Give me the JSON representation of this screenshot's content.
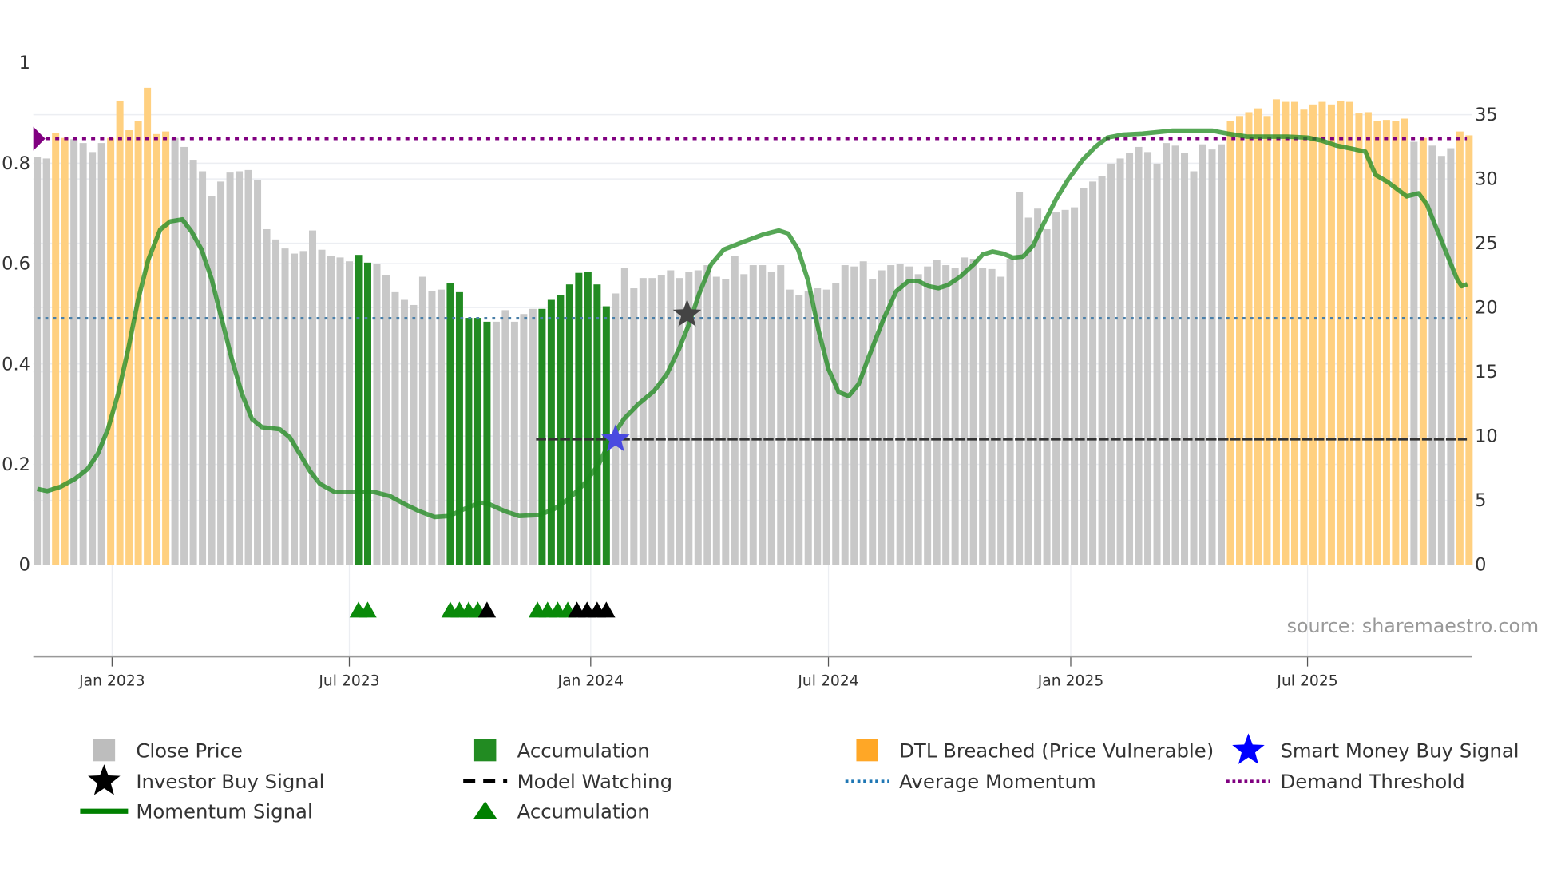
{
  "chart_data": {
    "type": "bar",
    "title": "",
    "left_axis": {
      "ticks": [
        "0",
        "0.2",
        "0.4",
        "0.6",
        "0.8",
        "1"
      ],
      "range": [
        0,
        1
      ]
    },
    "right_axis": {
      "ticks": [
        "0",
        "5",
        "10",
        "15",
        "20",
        "25",
        "30",
        "35"
      ],
      "range": [
        0,
        39
      ]
    },
    "x_ticks": [
      {
        "label": "Jan 2023",
        "week": 8.15
      },
      {
        "label": "Jul 2023",
        "week": 34.0
      },
      {
        "label": "Jan 2024",
        "week": 60.3
      },
      {
        "label": "Jul 2024",
        "week": 86.2
      },
      {
        "label": "Jan 2025",
        "week": 112.6
      },
      {
        "label": "Jul 2025",
        "week": 138.4
      }
    ],
    "close_price": [
      31.7,
      31.6,
      33.6,
      33.2,
      33.1,
      32.8,
      32.1,
      32.8,
      33.2,
      36.1,
      33.8,
      34.5,
      37.1,
      33.5,
      33.7,
      33.2,
      32.5,
      31.5,
      30.6,
      28.7,
      29.8,
      30.5,
      30.6,
      30.7,
      29.9,
      26.1,
      25.3,
      24.6,
      24.2,
      24.4,
      26.0,
      24.5,
      24.0,
      23.9,
      23.6,
      24.1,
      23.5,
      23.4,
      22.5,
      21.2,
      20.6,
      20.2,
      22.4,
      21.3,
      21.4,
      21.9,
      21.2,
      19.2,
      19.2,
      18.9,
      18.9,
      19.8,
      18.9,
      19.5,
      19.9,
      19.9,
      20.6,
      21.0,
      21.8,
      22.7,
      22.8,
      21.8,
      20.1,
      21.1,
      23.1,
      21.5,
      22.3,
      22.3,
      22.5,
      22.9,
      22.3,
      22.8,
      22.9,
      23.3,
      22.4,
      22.2,
      24.0,
      22.6,
      23.3,
      23.3,
      22.8,
      23.3,
      21.4,
      21.0,
      21.3,
      21.5,
      21.4,
      21.9,
      23.3,
      23.2,
      23.6,
      22.2,
      22.9,
      23.3,
      23.4,
      23.2,
      22.6,
      23.2,
      23.7,
      23.3,
      23.1,
      23.9,
      23.8,
      23.1,
      23.0,
      22.4,
      23.8,
      29.0,
      27.0,
      27.7,
      26.1,
      27.4,
      27.6,
      27.8,
      29.3,
      29.8,
      30.2,
      31.2,
      31.6,
      32.0,
      32.5,
      32.1,
      31.2,
      32.8,
      32.6,
      32.0,
      30.6,
      32.7,
      32.3,
      32.7,
      34.5,
      34.9,
      35.2,
      35.5,
      34.9,
      36.2,
      36.0,
      36.0,
      35.4,
      35.8,
      36.0,
      35.8,
      36.1,
      36.0,
      35.1,
      35.2,
      34.5,
      34.6,
      34.5,
      34.7,
      32.9,
      33.2,
      32.6,
      31.8,
      32.4,
      33.7,
      33.4
    ],
    "accumulation_bars": [
      35,
      36,
      45,
      46,
      47,
      48,
      49,
      55,
      56,
      57,
      58,
      59,
      60,
      61,
      62
    ],
    "dtl_breached_bars": [
      2,
      3,
      8,
      9,
      10,
      11,
      12,
      13,
      14,
      130,
      131,
      132,
      133,
      134,
      135,
      136,
      137,
      138,
      139,
      140,
      141,
      142,
      143,
      144,
      145,
      146,
      147,
      148,
      149,
      151,
      155,
      156
    ],
    "momentum_signal": [
      [
        0,
        0.151
      ],
      [
        1.1,
        0.147
      ],
      [
        2.5,
        0.155
      ],
      [
        4.1,
        0.171
      ],
      [
        5.5,
        0.191
      ],
      [
        6.6,
        0.221
      ],
      [
        7.7,
        0.27
      ],
      [
        8.8,
        0.34
      ],
      [
        9.9,
        0.429
      ],
      [
        11,
        0.529
      ],
      [
        12.1,
        0.608
      ],
      [
        13.4,
        0.668
      ],
      [
        14.5,
        0.684
      ],
      [
        15.8,
        0.688
      ],
      [
        16.8,
        0.664
      ],
      [
        17.9,
        0.628
      ],
      [
        19,
        0.569
      ],
      [
        20.1,
        0.489
      ],
      [
        21.2,
        0.41
      ],
      [
        22.3,
        0.34
      ],
      [
        23.4,
        0.29
      ],
      [
        24.5,
        0.274
      ],
      [
        26.4,
        0.27
      ],
      [
        27.5,
        0.254
      ],
      [
        28.6,
        0.221
      ],
      [
        29.7,
        0.187
      ],
      [
        30.8,
        0.161
      ],
      [
        32.4,
        0.145
      ],
      [
        36.7,
        0.145
      ],
      [
        38.4,
        0.137
      ],
      [
        40,
        0.121
      ],
      [
        41.6,
        0.107
      ],
      [
        43.3,
        0.095
      ],
      [
        44.9,
        0.097
      ],
      [
        46.5,
        0.111
      ],
      [
        48.2,
        0.123
      ],
      [
        49.2,
        0.121
      ],
      [
        50.9,
        0.107
      ],
      [
        52.5,
        0.097
      ],
      [
        54.7,
        0.099
      ],
      [
        56.3,
        0.111
      ],
      [
        57.9,
        0.131
      ],
      [
        59.6,
        0.161
      ],
      [
        61.2,
        0.201
      ],
      [
        62.5,
        0.25
      ],
      [
        63.9,
        0.29
      ],
      [
        65.5,
        0.32
      ],
      [
        67.2,
        0.346
      ],
      [
        68.6,
        0.38
      ],
      [
        69.9,
        0.429
      ],
      [
        71,
        0.479
      ],
      [
        72.1,
        0.539
      ],
      [
        73.4,
        0.598
      ],
      [
        74.8,
        0.628
      ],
      [
        77,
        0.644
      ],
      [
        79.1,
        0.658
      ],
      [
        80.8,
        0.666
      ],
      [
        81.8,
        0.66
      ],
      [
        82.9,
        0.628
      ],
      [
        84,
        0.565
      ],
      [
        85.1,
        0.469
      ],
      [
        86.2,
        0.39
      ],
      [
        87.3,
        0.344
      ],
      [
        88.4,
        0.336
      ],
      [
        89.5,
        0.36
      ],
      [
        90.5,
        0.41
      ],
      [
        92.2,
        0.489
      ],
      [
        93.6,
        0.545
      ],
      [
        94.9,
        0.565
      ],
      [
        96,
        0.565
      ],
      [
        97.1,
        0.555
      ],
      [
        98.2,
        0.551
      ],
      [
        99.2,
        0.557
      ],
      [
        100.5,
        0.573
      ],
      [
        102,
        0.598
      ],
      [
        103,
        0.618
      ],
      [
        104.1,
        0.624
      ],
      [
        105.2,
        0.62
      ],
      [
        106.3,
        0.612
      ],
      [
        107.4,
        0.614
      ],
      [
        108.5,
        0.636
      ],
      [
        109.6,
        0.678
      ],
      [
        111,
        0.728
      ],
      [
        112.3,
        0.767
      ],
      [
        113.9,
        0.807
      ],
      [
        115.3,
        0.833
      ],
      [
        116.6,
        0.851
      ],
      [
        118.3,
        0.857
      ],
      [
        120.4,
        0.859
      ],
      [
        123.7,
        0.865
      ],
      [
        128,
        0.865
      ],
      [
        129.7,
        0.859
      ],
      [
        131.8,
        0.853
      ],
      [
        136.2,
        0.853
      ],
      [
        138.4,
        0.851
      ],
      [
        140,
        0.845
      ],
      [
        141.6,
        0.835
      ],
      [
        143.2,
        0.829
      ],
      [
        144.7,
        0.823
      ],
      [
        145.8,
        0.777
      ],
      [
        147.1,
        0.763
      ],
      [
        148.2,
        0.748
      ],
      [
        149.2,
        0.734
      ],
      [
        150.5,
        0.74
      ],
      [
        151.4,
        0.718
      ],
      [
        152.5,
        0.668
      ],
      [
        153.6,
        0.618
      ],
      [
        154.7,
        0.569
      ],
      [
        155.2,
        0.555
      ],
      [
        155.8,
        0.559
      ]
    ],
    "average_momentum": 0.491,
    "demand_threshold": 0.849,
    "model_watching": {
      "value": 0.25,
      "from_week": 55
    },
    "investor_buy_signal": {
      "week": 70.8,
      "value": 0.499
    },
    "smart_money_buy_signal": {
      "week": 63,
      "value": 0.25
    },
    "accumulation_triangles": [
      {
        "week": 35,
        "color": "green"
      },
      {
        "week": 36,
        "color": "green"
      },
      {
        "week": 45,
        "color": "green"
      },
      {
        "week": 46,
        "color": "green"
      },
      {
        "week": 47,
        "color": "green"
      },
      {
        "week": 48,
        "color": "green"
      },
      {
        "week": 49,
        "color": "black"
      },
      {
        "week": 54.5,
        "color": "green"
      },
      {
        "week": 55.6,
        "color": "green"
      },
      {
        "week": 56.7,
        "color": "green"
      },
      {
        "week": 57.8,
        "color": "green"
      },
      {
        "week": 58.8,
        "color": "black"
      },
      {
        "week": 59.9,
        "color": "black"
      },
      {
        "week": 61,
        "color": "black"
      },
      {
        "week": 62,
        "color": "black"
      }
    ],
    "legend": [
      {
        "label": "Close Price",
        "kind": "bar",
        "color": "#bdbdbd"
      },
      {
        "label": "Accumulation",
        "kind": "bar",
        "color": "#228b22"
      },
      {
        "label": "DTL Breached (Price Vulnerable)",
        "kind": "bar",
        "color": "#ffa726"
      },
      {
        "label": "Smart Money Buy Signal",
        "kind": "star",
        "color": "#0000ff"
      },
      {
        "label": "Investor Buy Signal",
        "kind": "star",
        "color": "#000000"
      },
      {
        "label": "Model Watching",
        "kind": "dash",
        "color": "#000000"
      },
      {
        "label": "Average Momentum",
        "kind": "dot",
        "color": "#1f77b4"
      },
      {
        "label": "Demand Threshold",
        "kind": "dot",
        "color": "#800080"
      },
      {
        "label": "Momentum Signal",
        "kind": "line",
        "color": "#008000"
      },
      {
        "label": "Accumulation",
        "kind": "triangle",
        "color": "#008000"
      }
    ],
    "colors": {
      "gray": "#c8c8c8",
      "green": "#228b22",
      "orange": "#ffd080",
      "momentum": "#1e8a1e",
      "purple": "#800080",
      "avg": "#4a7fa8"
    }
  },
  "source": "source: sharemaestro.com"
}
